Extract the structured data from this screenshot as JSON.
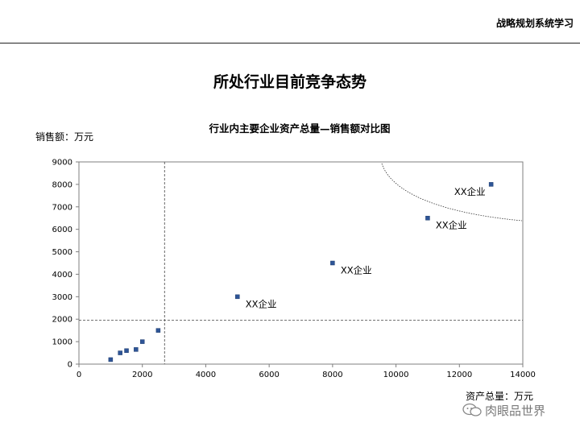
{
  "header": {
    "title": "战略规划系统学习"
  },
  "page": {
    "title": "所处行业目前竞争态势"
  },
  "watermark": {
    "text": "肉眼品世界",
    "icon": "chat-bubble-icon"
  },
  "chart_data": {
    "type": "scatter",
    "title": "行业内主要企业资产总量—销售额对比图",
    "xlabel": "资产总量：万元",
    "ylabel": "销售额：万元",
    "xlim": [
      0,
      14000
    ],
    "ylim": [
      0,
      9000
    ],
    "x_ticks": [
      "0",
      "2000",
      "4000",
      "6000",
      "8000",
      "10000",
      "12000",
      "14000"
    ],
    "y_ticks": [
      "0",
      "1000",
      "2000",
      "3000",
      "4000",
      "5000",
      "6000",
      "7000",
      "8000",
      "9000"
    ],
    "grid": false,
    "marker_color": "#2e5597",
    "reference_lines": {
      "x": 2700,
      "y": 1950
    },
    "points": [
      {
        "x": 1000,
        "y": 200
      },
      {
        "x": 1300,
        "y": 500
      },
      {
        "x": 1500,
        "y": 600
      },
      {
        "x": 1800,
        "y": 650
      },
      {
        "x": 2000,
        "y": 1000
      },
      {
        "x": 2500,
        "y": 1500
      },
      {
        "x": 5000,
        "y": 3000,
        "label": "XX企业"
      },
      {
        "x": 8000,
        "y": 4500,
        "label": "XX企业"
      },
      {
        "x": 11000,
        "y": 6500,
        "label": "XX企业"
      },
      {
        "x": 13000,
        "y": 8000,
        "label": "XX企业"
      }
    ]
  }
}
